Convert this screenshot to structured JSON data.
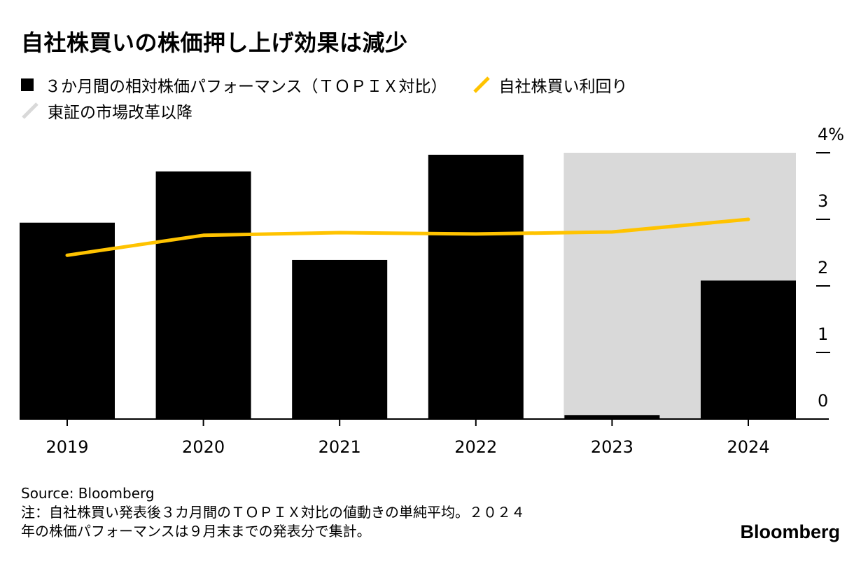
{
  "title": "自社株買いの株価押し上げ効果は減少",
  "legend": {
    "bars": "３か月間の相対株価パフォーマンス（ＴＯＰＩＸ対比）",
    "line": "自社株買い利回り",
    "shade": "東証の市場改革以降"
  },
  "colors": {
    "bar": "#000000",
    "line": "#ffc300",
    "shade": "#d9d9d9",
    "axis": "#000000"
  },
  "chart_data": {
    "type": "bar",
    "title": "自社株買いの株価押し上げ効果は減少",
    "categories": [
      "2019",
      "2020",
      "2021",
      "2022",
      "2023",
      "2024"
    ],
    "series": [
      {
        "name": "３か月間の相対株価パフォーマンス（ＴＯＰＩＸ対比）",
        "kind": "bar",
        "values": [
          2.95,
          3.72,
          2.39,
          3.97,
          0.06,
          2.08
        ]
      },
      {
        "name": "自社株買い利回り",
        "kind": "line",
        "values": [
          2.46,
          2.76,
          2.8,
          2.78,
          2.81,
          3.0
        ]
      }
    ],
    "shaded_region": {
      "label": "東証の市場改革以降",
      "from": "2023",
      "to": "2024"
    },
    "ylim": [
      0,
      4
    ],
    "yticks": [
      0,
      1,
      2,
      3,
      4
    ],
    "ytick_labels": [
      "0",
      "1",
      "2",
      "3",
      "4%"
    ],
    "y_axis_side": "right",
    "grid": false,
    "legend_position": "top-left",
    "xlabel": "",
    "ylabel": ""
  },
  "footer": {
    "source": "Source: Bloomberg",
    "note_line1": "注：自社株買い発表後３カ月間のＴＯＰＩＸ対比の値動きの単純平均。２０２４",
    "note_line2": "年の株価パフォーマンスは９月末までの発表分で集計。"
  },
  "brand": "Bloomberg"
}
